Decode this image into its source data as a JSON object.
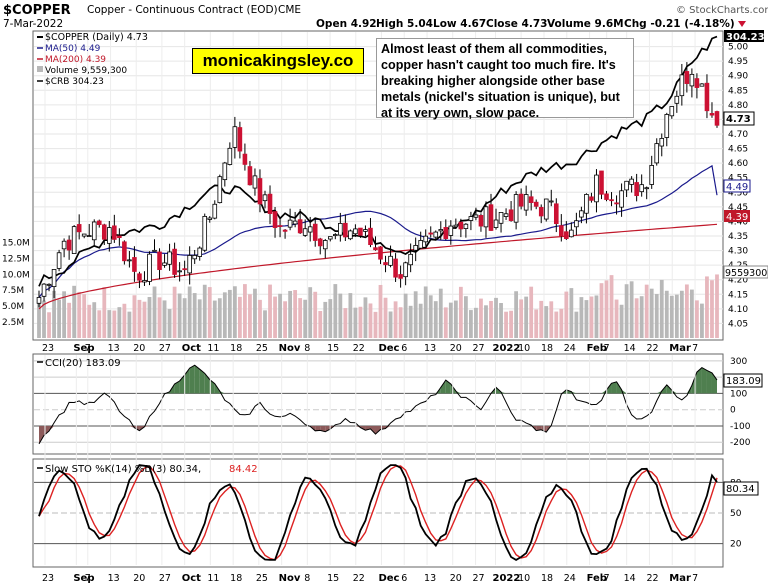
{
  "header": {
    "symbol": "$COPPER",
    "description": "Copper - Continuous Contract (EOD)",
    "exchange": "CME",
    "date": "7-Mar-2022",
    "open": "Open 4.92",
    "high": "High 5.04",
    "low": "Low 4.67",
    "close": "Close 4.73",
    "volume": "Volume 9.6M",
    "change": "Chg -0.21 (-4.18%)",
    "change_arrow": "down-arrow-icon",
    "source": "© StockCharts.com"
  },
  "legend": {
    "main": "$COPPER (Daily) 4.73",
    "ma50": "MA(50) 4.49",
    "ma200": "MA(200) 4.39",
    "volume": "Volume 9,559,300",
    "crb": "$CRB 304.23"
  },
  "annotation": {
    "brand": "monicakingsley.co",
    "text": "Almost least of them all commodities, copper hasn't  caught too much fire. It's breaking higher alongside other base metals (nickel's situation is unique), but at its very own, slow pace."
  },
  "badges": {
    "crb": "304.23",
    "price": "4.73",
    "ma50": "4.49",
    "ma200": "4.39",
    "volume": "9559300",
    "cci": "183.09",
    "sto": "80.34"
  },
  "indicators": {
    "cci_label": "CCI(20) 183.09",
    "sto_label": "Slow STO %K(14) %D(3) 80.34,",
    "sto_d": "84.42"
  },
  "colors": {
    "up": "#ffffff",
    "down": "#cc1133",
    "ma50": "#1a1a8c",
    "ma200": "#c0182a",
    "crb": "#000000",
    "vol_up": "#b8b8b8",
    "vol_down": "#e7b7bd",
    "cci_fill": "#4f7f4f",
    "cci_neg_fill": "#8c5a5a",
    "sto_k": "#000000",
    "sto_d": "#dd2222"
  },
  "chart_data": [
    {
      "type": "candlestick",
      "title": "$COPPER (Daily) 4.73",
      "y_axis": {
        "range": [
          4.0,
          5.05
        ],
        "ticks": [
          "4.05",
          "4.10",
          "4.15",
          "4.20",
          "4.25",
          "4.30",
          "4.35",
          "4.40",
          "4.45",
          "4.50",
          "4.55",
          "4.60",
          "4.65",
          "4.70",
          "4.75",
          "4.80",
          "4.85",
          "4.90",
          "4.95",
          "5.00"
        ]
      },
      "volume_axis": {
        "ticks": [
          "2.5M",
          "5.0M",
          "7.5M",
          "10.0M",
          "12.5M",
          "15.0M"
        ]
      },
      "x_tick_labels": [
        "23",
        "Sep",
        "7",
        "13",
        "20",
        "27",
        "Oct",
        "11",
        "18",
        "25",
        "Nov",
        "8",
        "15",
        "22",
        "Dec",
        "6",
        "13",
        "20",
        "27",
        "2022",
        "10",
        "18",
        "24",
        "Feb",
        "7",
        "14",
        "22",
        "Mar",
        "7"
      ],
      "ohlc_keypoints": [
        {
          "date": "Aug 23",
          "close": 4.14
        },
        {
          "date": "Sep 1",
          "close": 4.33
        },
        {
          "date": "Sep 7",
          "close": 4.37
        },
        {
          "date": "Sep 13",
          "close": 4.38
        },
        {
          "date": "Sep 20",
          "close": 4.22
        },
        {
          "date": "Sep 27",
          "close": 4.27
        },
        {
          "date": "Oct 4",
          "close": 4.23
        },
        {
          "date": "Oct 11",
          "close": 4.4
        },
        {
          "date": "Oct 18",
          "close": 4.72
        },
        {
          "date": "Oct 25",
          "close": 4.5
        },
        {
          "date": "Nov 1",
          "close": 4.37
        },
        {
          "date": "Nov 8",
          "close": 4.4
        },
        {
          "date": "Nov 15",
          "close": 4.33
        },
        {
          "date": "Nov 22",
          "close": 4.38
        },
        {
          "date": "Dec 6",
          "close": 4.3
        },
        {
          "date": "Dec 13",
          "close": 4.22
        },
        {
          "date": "Dec 20",
          "close": 4.32
        },
        {
          "date": "Dec 27",
          "close": 4.4
        },
        {
          "date": "Jan 3",
          "close": 4.4
        },
        {
          "date": "Jan 10",
          "close": 4.42
        },
        {
          "date": "Jan 18",
          "close": 4.46
        },
        {
          "date": "Jan 24",
          "close": 4.45
        },
        {
          "date": "Feb 1",
          "close": 4.35
        },
        {
          "date": "Feb 7",
          "close": 4.53
        },
        {
          "date": "Feb 14",
          "close": 4.5
        },
        {
          "date": "Feb 22",
          "close": 4.53
        },
        {
          "date": "Mar 1",
          "close": 4.8
        },
        {
          "date": "Mar 4",
          "close": 4.94
        },
        {
          "date": "Mar 7",
          "close": 4.73
        }
      ],
      "series_last": {
        "MA(50)": 4.49,
        "MA(200)": 4.39,
        "$CRB": 304.23,
        "Volume": 9559300
      }
    },
    {
      "type": "line",
      "title": "CCI(20) 183.09",
      "y_axis": {
        "ticks": [
          "300",
          "200",
          "100",
          "0",
          "-100",
          "-200"
        ]
      },
      "values_keypoints": [
        -200,
        -60,
        60,
        30,
        100,
        -40,
        -150,
        40,
        150,
        280,
        200,
        60,
        -60,
        40,
        -50,
        -30,
        -100,
        -150,
        -50,
        -100,
        -150,
        -50,
        0,
        60,
        170,
        80,
        0,
        150,
        -50,
        -100,
        -150,
        140,
        40,
        30,
        200,
        -40,
        -50,
        170,
        40,
        280,
        183.09
      ]
    },
    {
      "type": "line",
      "title": "Slow STO %K(14) %D(3)",
      "y_axis": {
        "ticks": [
          "80",
          "50",
          "20"
        ]
      },
      "series": [
        {
          "name": "%K",
          "last": 80.34
        },
        {
          "name": "%D",
          "last": 84.42
        }
      ]
    }
  ]
}
